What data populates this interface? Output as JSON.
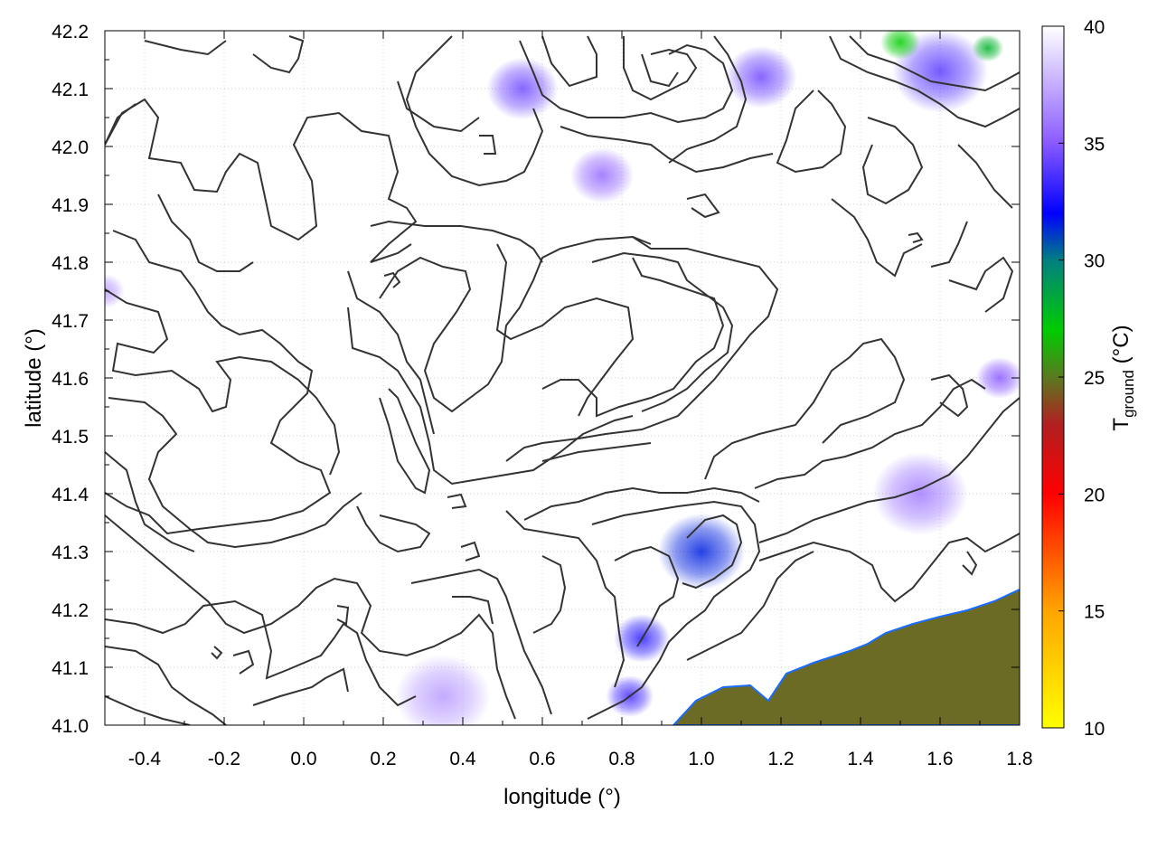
{
  "chart_data": {
    "type": "heatmap",
    "title": "",
    "xlabel": "longitude (°)",
    "ylabel": "latitude (°)",
    "xlim": [
      -0.5,
      1.8
    ],
    "ylim": [
      41.0,
      42.2
    ],
    "x_ticks": [
      "-0.4",
      "-0.2",
      "0.0",
      "0.2",
      "0.4",
      "0.6",
      "0.8",
      "1.0",
      "1.2",
      "1.4",
      "1.6",
      "1.8"
    ],
    "y_ticks": [
      "41.0",
      "41.1",
      "41.2",
      "41.3",
      "41.4",
      "41.5",
      "41.6",
      "41.7",
      "41.8",
      "41.9",
      "42.0",
      "42.1",
      "42.2"
    ],
    "grid": true,
    "colorbar": {
      "label_main": "T",
      "label_sub": "ground",
      "label_unit": " (°C)",
      "range": [
        10,
        40
      ],
      "ticks": [
        "10",
        "15",
        "20",
        "25",
        "30",
        "35",
        "40"
      ],
      "stops": [
        {
          "value": 10,
          "color": "#ffff00"
        },
        {
          "value": 15,
          "color": "#ffa500"
        },
        {
          "value": 20,
          "color": "#ff0000"
        },
        {
          "value": 23,
          "color": "#b02020"
        },
        {
          "value": 25,
          "color": "#5a7a20"
        },
        {
          "value": 27,
          "color": "#00cc00"
        },
        {
          "value": 30,
          "color": "#008080"
        },
        {
          "value": 32,
          "color": "#0000ff"
        },
        {
          "value": 35,
          "color": "#8a5aff"
        },
        {
          "value": 40,
          "color": "#ffffff"
        }
      ]
    },
    "sea_color": "#6b6b25",
    "contour_color": "#333333",
    "hot_spots": [
      {
        "lon": 1.0,
        "lat": 41.3,
        "t": 31.5,
        "r": 0.11
      },
      {
        "lon": 0.85,
        "lat": 41.15,
        "t": 33,
        "r": 0.07
      },
      {
        "lon": 0.82,
        "lat": 41.05,
        "t": 33.5,
        "r": 0.06
      },
      {
        "lon": 0.55,
        "lat": 42.1,
        "t": 34.5,
        "r": 0.09
      },
      {
        "lon": 0.75,
        "lat": 41.95,
        "t": 35.5,
        "r": 0.08
      },
      {
        "lon": 1.15,
        "lat": 42.12,
        "t": 34.5,
        "r": 0.09
      },
      {
        "lon": 1.6,
        "lat": 42.13,
        "t": 34,
        "r": 0.12
      },
      {
        "lon": 1.75,
        "lat": 41.6,
        "t": 35,
        "r": 0.06
      },
      {
        "lon": 1.55,
        "lat": 41.4,
        "t": 36,
        "r": 0.12
      },
      {
        "lon": 0.35,
        "lat": 41.05,
        "t": 37,
        "r": 0.12
      },
      {
        "lon": -0.5,
        "lat": 41.75,
        "t": 37,
        "r": 0.05
      }
    ],
    "green_spots": [
      {
        "lon": 1.5,
        "lat": 42.18,
        "t": 27,
        "r": 0.05
      },
      {
        "lon": 1.72,
        "lat": 42.17,
        "t": 28,
        "r": 0.04
      }
    ]
  }
}
